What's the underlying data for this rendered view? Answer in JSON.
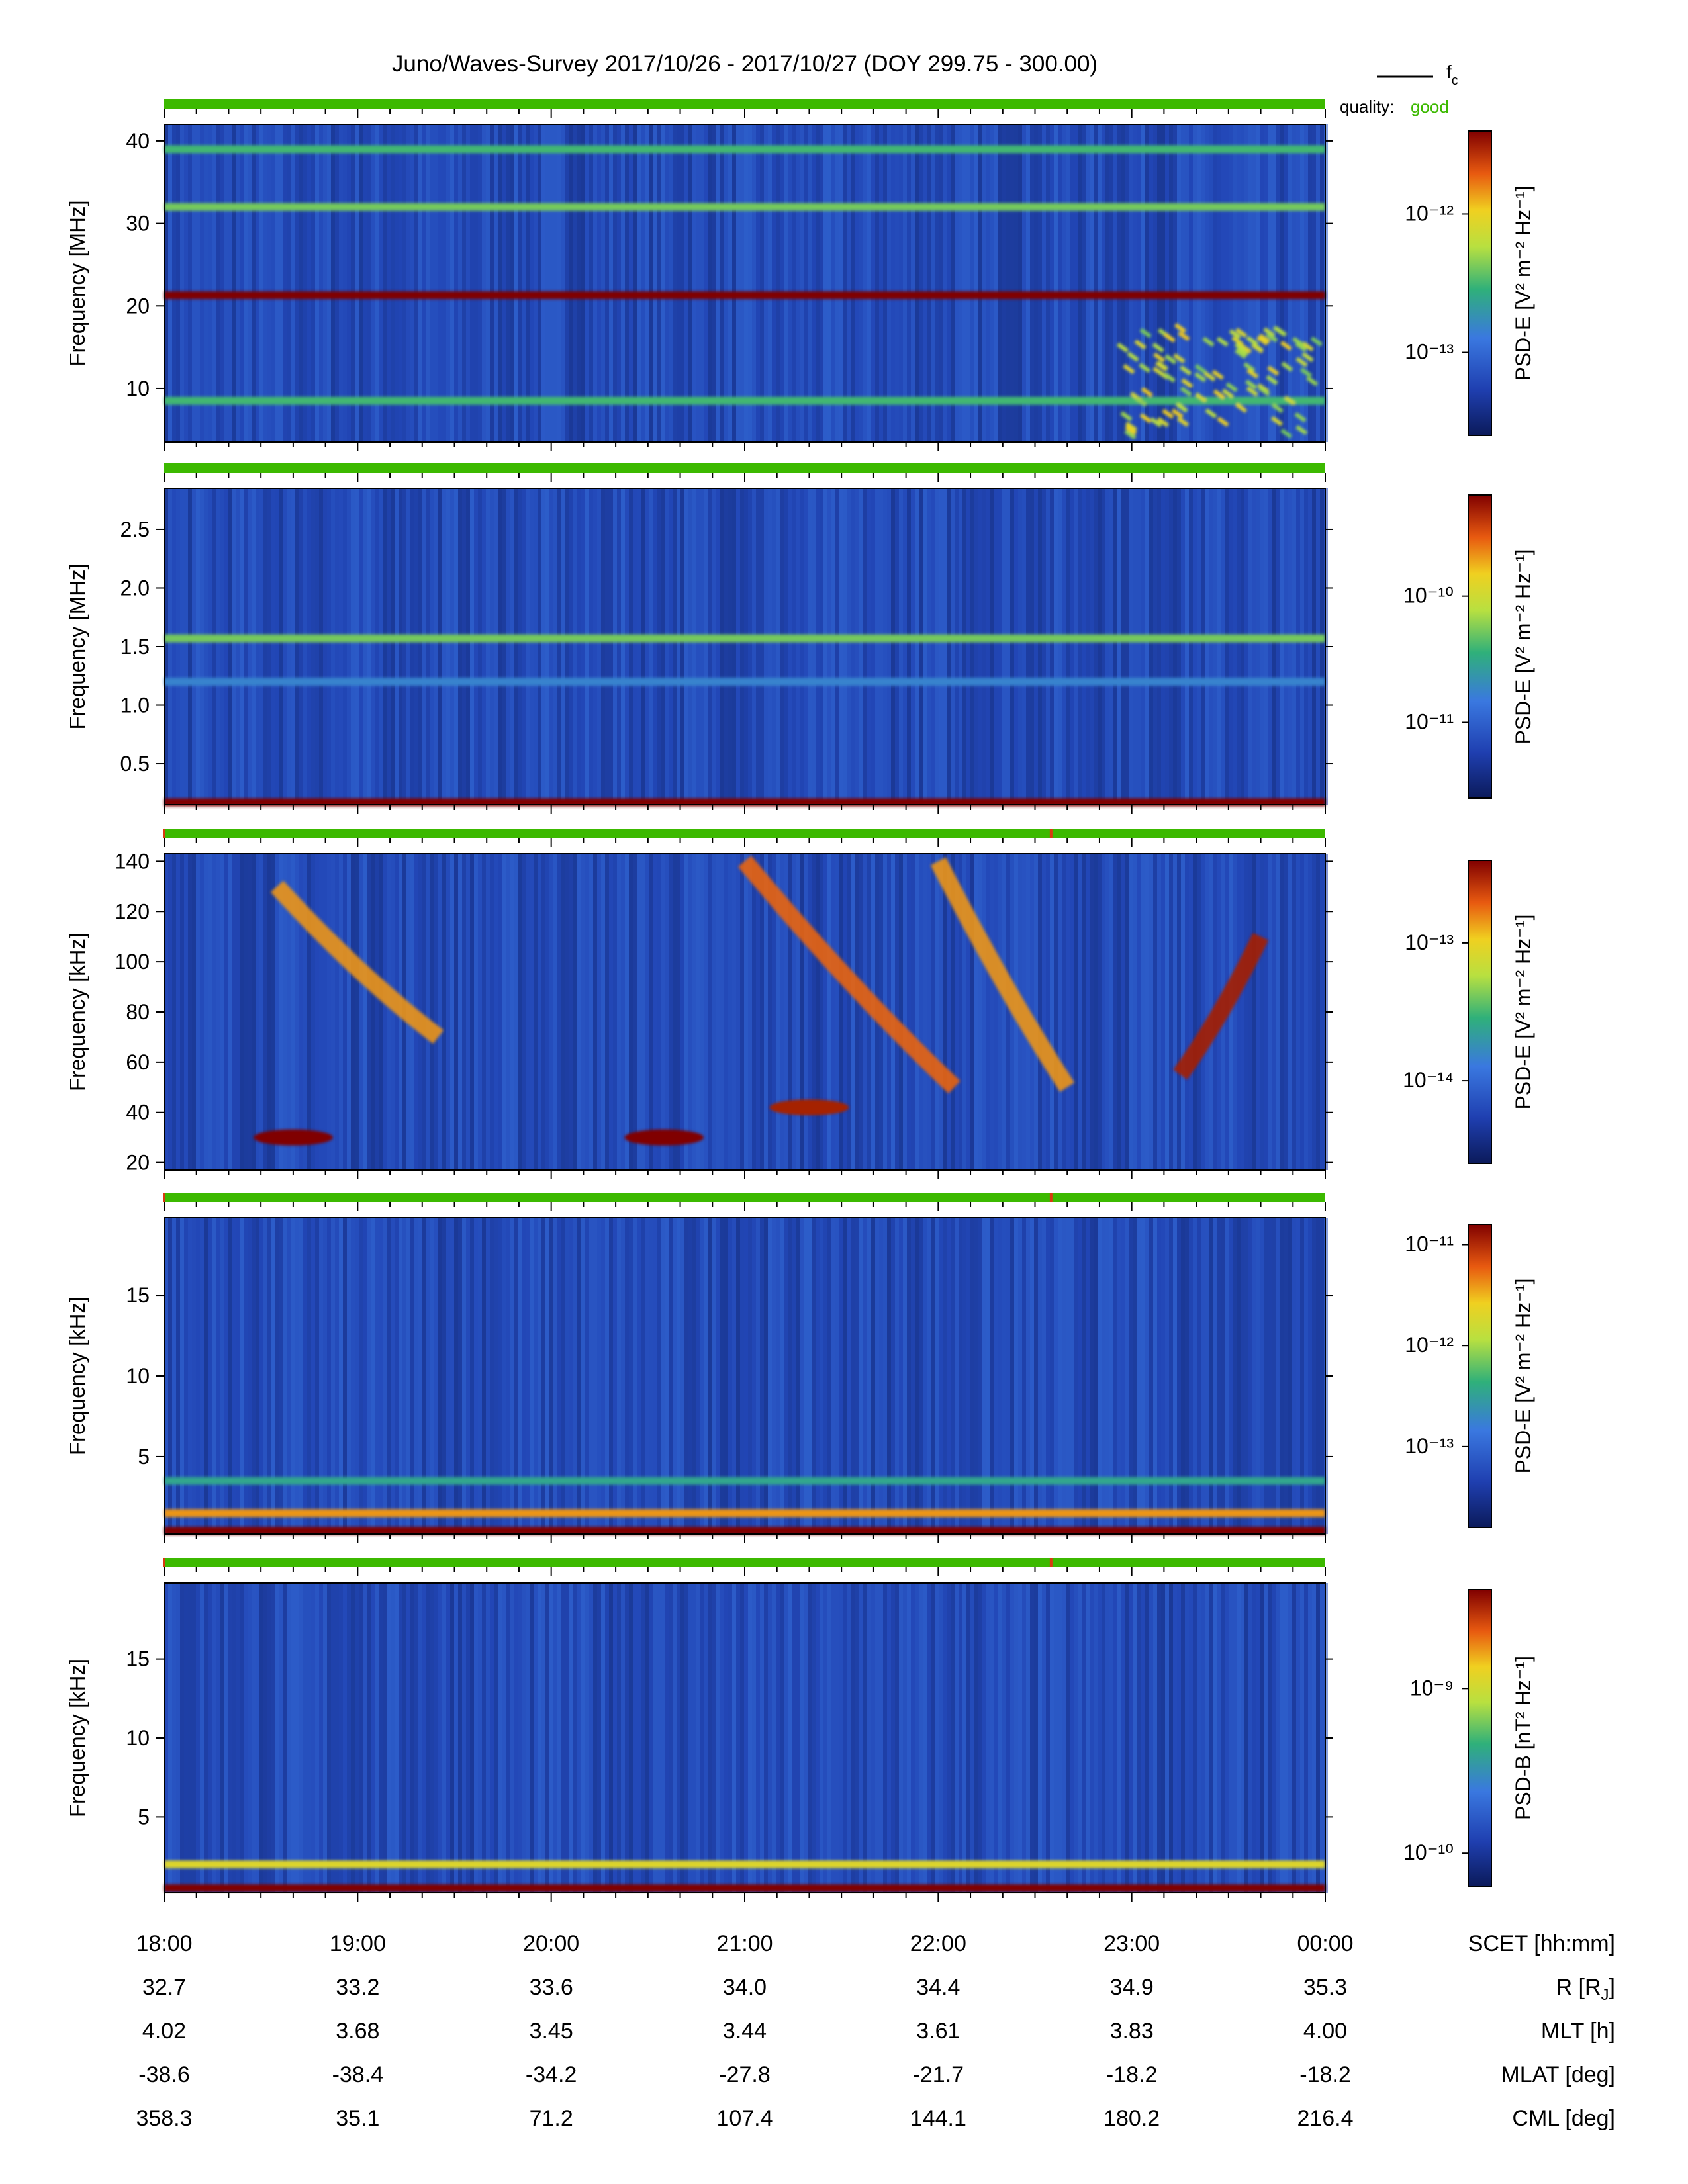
{
  "title": "Juno/Waves-Survey  2017/10/26 - 2017/10/27 (DOY 299.75 - 300.00)",
  "legend": {
    "line_label": "f",
    "line_label_sub": "c",
    "quality_label": "quality:",
    "quality_value": "good",
    "quality_color": "#3cb900"
  },
  "colors": {
    "quality_bar": "#3cb900",
    "quality_flag": "#d83a10"
  },
  "chart_data": [
    {
      "type": "heatmap",
      "panel": 1,
      "ylabel": "Frequency [MHz]",
      "yticks": [
        "10",
        "20",
        "30",
        "40"
      ],
      "yrange": [
        3.5,
        42
      ],
      "colorbar_label": "PSD-E [V² m⁻² Hz⁻¹]",
      "colorbar_ticks": [
        "10⁻¹²",
        "10⁻¹³"
      ],
      "colorbar_tick_values": [
        -12,
        -13
      ],
      "colorbar_range": [
        -13.6,
        -11.4
      ],
      "features": [
        {
          "kind": "band",
          "freq": 21.3,
          "level": 1.0
        },
        {
          "kind": "band",
          "freq": 39,
          "level": 0.5
        },
        {
          "kind": "band",
          "freq": 32,
          "level": 0.55
        },
        {
          "kind": "band",
          "freq": 8.5,
          "level": 0.5
        },
        {
          "kind": "burst",
          "start": "22:55",
          "end": "00:00",
          "freq_range": [
            5,
            18
          ],
          "level": 0.75
        }
      ],
      "quality_flags": []
    },
    {
      "type": "heatmap",
      "panel": 2,
      "ylabel": "Frequency [MHz]",
      "yticks": [
        "0.5",
        "1.0",
        "1.5",
        "2.0",
        "2.5"
      ],
      "yrange": [
        0.15,
        2.85
      ],
      "colorbar_label": "PSD-E [V² m⁻² Hz⁻¹]",
      "colorbar_ticks": [
        "10⁻¹⁰",
        "10⁻¹¹"
      ],
      "colorbar_tick_values": [
        -10,
        -11
      ],
      "colorbar_range": [
        -11.6,
        -9.2
      ],
      "features": [
        {
          "kind": "band",
          "freq": 1.57,
          "level": 0.55
        },
        {
          "kind": "band",
          "freq": 1.2,
          "level": 0.35
        },
        {
          "kind": "band",
          "freq": 0.17,
          "level": 1.0
        }
      ],
      "quality_flags": []
    },
    {
      "type": "heatmap",
      "panel": 3,
      "ylabel": "Frequency [kHz]",
      "yticks": [
        "20",
        "40",
        "60",
        "80",
        "100",
        "120",
        "140"
      ],
      "yrange": [
        17,
        143
      ],
      "colorbar_label": "PSD-E [V² m⁻² Hz⁻¹]",
      "colorbar_ticks": [
        "10⁻¹³",
        "10⁻¹⁴"
      ],
      "colorbar_tick_values": [
        -13,
        -14
      ],
      "colorbar_range": [
        -14.6,
        -12.4
      ],
      "features": [
        {
          "kind": "arc",
          "start": "18:35",
          "end": "19:25",
          "freq_range": [
            130,
            70
          ],
          "level": 0.8
        },
        {
          "kind": "arc",
          "start": "21:00",
          "end": "22:05",
          "freq_range": [
            140,
            50
          ],
          "level": 0.85
        },
        {
          "kind": "arc",
          "start": "22:00",
          "end": "22:40",
          "freq_range": [
            140,
            50
          ],
          "level": 0.8
        },
        {
          "kind": "arc",
          "start": "23:15",
          "end": "23:40",
          "freq_range": [
            55,
            110
          ],
          "level": 0.95
        },
        {
          "kind": "blob",
          "time": "18:40",
          "freq": 30,
          "level": 1.0
        },
        {
          "kind": "blob",
          "time": "20:35",
          "freq": 30,
          "level": 1.0
        },
        {
          "kind": "blob",
          "time": "21:20",
          "freq": 42,
          "level": 0.95
        }
      ],
      "quality_flags": [
        "18:00",
        "22:35"
      ]
    },
    {
      "type": "heatmap",
      "panel": 4,
      "ylabel": "Frequency [kHz]",
      "yticks": [
        "5",
        "10",
        "15"
      ],
      "yrange": [
        0.2,
        19.8
      ],
      "colorbar_label": "PSD-E [V² m⁻² Hz⁻¹]",
      "colorbar_ticks": [
        "10⁻¹¹",
        "10⁻¹²",
        "10⁻¹³"
      ],
      "colorbar_tick_values": [
        -11,
        -12,
        -13
      ],
      "colorbar_range": [
        -13.8,
        -10.8
      ],
      "features": [
        {
          "kind": "band",
          "freq": 0.4,
          "level": 1.0
        },
        {
          "kind": "band",
          "freq": 1.5,
          "level": 0.8
        },
        {
          "kind": "band",
          "freq": 3.5,
          "level": 0.45
        }
      ],
      "quality_flags": [
        "18:00",
        "22:35"
      ]
    },
    {
      "type": "heatmap",
      "panel": 5,
      "ylabel": "Frequency [kHz]",
      "yticks": [
        "5",
        "10",
        "15"
      ],
      "yrange": [
        0.2,
        19.8
      ],
      "colorbar_label": "PSD-B [nT² Hz⁻¹]",
      "colorbar_ticks": [
        "10⁻⁹",
        "10⁻¹⁰"
      ],
      "colorbar_tick_values": [
        -9,
        -10
      ],
      "colorbar_range": [
        -10.2,
        -8.4
      ],
      "features": [
        {
          "kind": "band",
          "freq": 0.5,
          "level": 1.0
        },
        {
          "kind": "band",
          "freq": 2.0,
          "level": 0.7
        }
      ],
      "quality_flags": [
        "18:00",
        "22:35"
      ]
    }
  ],
  "x_axis": {
    "ticks": [
      "18:00",
      "19:00",
      "20:00",
      "21:00",
      "22:00",
      "23:00",
      "00:00"
    ],
    "rows": [
      {
        "label": "SCET [hh:mm]",
        "values": [
          "18:00",
          "19:00",
          "20:00",
          "21:00",
          "22:00",
          "23:00",
          "00:00"
        ]
      },
      {
        "label": "R [R",
        "label_sub": "J",
        "label_end": "]",
        "values": [
          "32.7",
          "33.2",
          "33.6",
          "34.0",
          "34.4",
          "34.9",
          "35.3"
        ]
      },
      {
        "label": "MLT [h]",
        "values": [
          "4.02",
          "3.68",
          "3.45",
          "3.44",
          "3.61",
          "3.83",
          "4.00"
        ]
      },
      {
        "label": "MLAT [deg]",
        "values": [
          "-38.6",
          "-38.4",
          "-34.2",
          "-27.8",
          "-21.7",
          "-18.2",
          "-18.2"
        ]
      },
      {
        "label": "CML [deg]",
        "values": [
          "358.3",
          "35.1",
          "71.2",
          "107.4",
          "144.1",
          "180.2",
          "216.4"
        ]
      }
    ]
  }
}
